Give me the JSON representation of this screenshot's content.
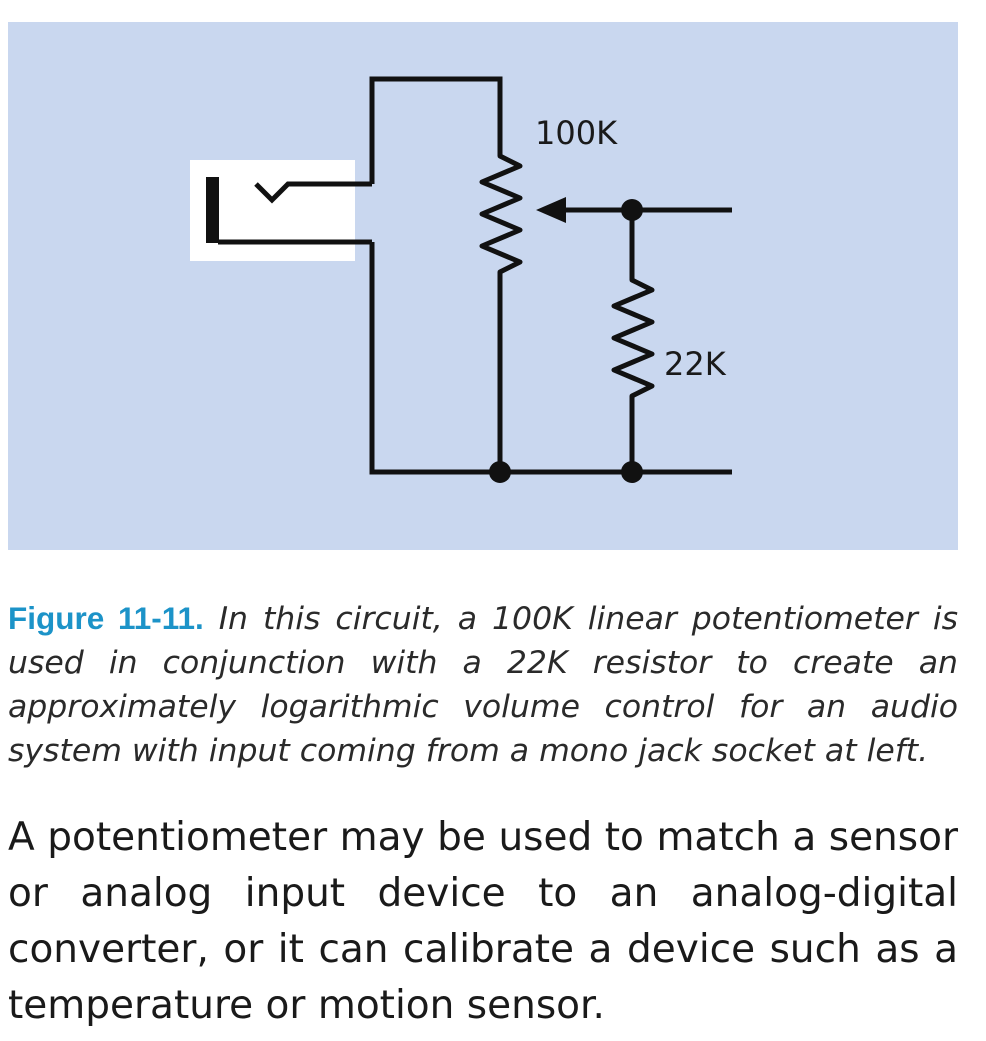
{
  "figure": {
    "labels": {
      "potentiometer": "100K",
      "resistor": "22K"
    },
    "colors": {
      "panel_background": "#c9d7ef",
      "jack_background": "#ffffff",
      "wire": "#111111",
      "caption_label": "#1c93c8"
    }
  },
  "caption": {
    "label": "Figure 11-11.",
    "text": "In this circuit, a 100K linear potentiometer is used in conjunction with a 22K resistor to create an approximately logarithmic volume control for an audio system with input coming from a mono jack socket at left."
  },
  "body": {
    "paragraph": "A potentiometer may be used to match a sensor or analog input device to an analog-digital converter, or it can calibrate a device such as a temperature or motion sensor."
  }
}
